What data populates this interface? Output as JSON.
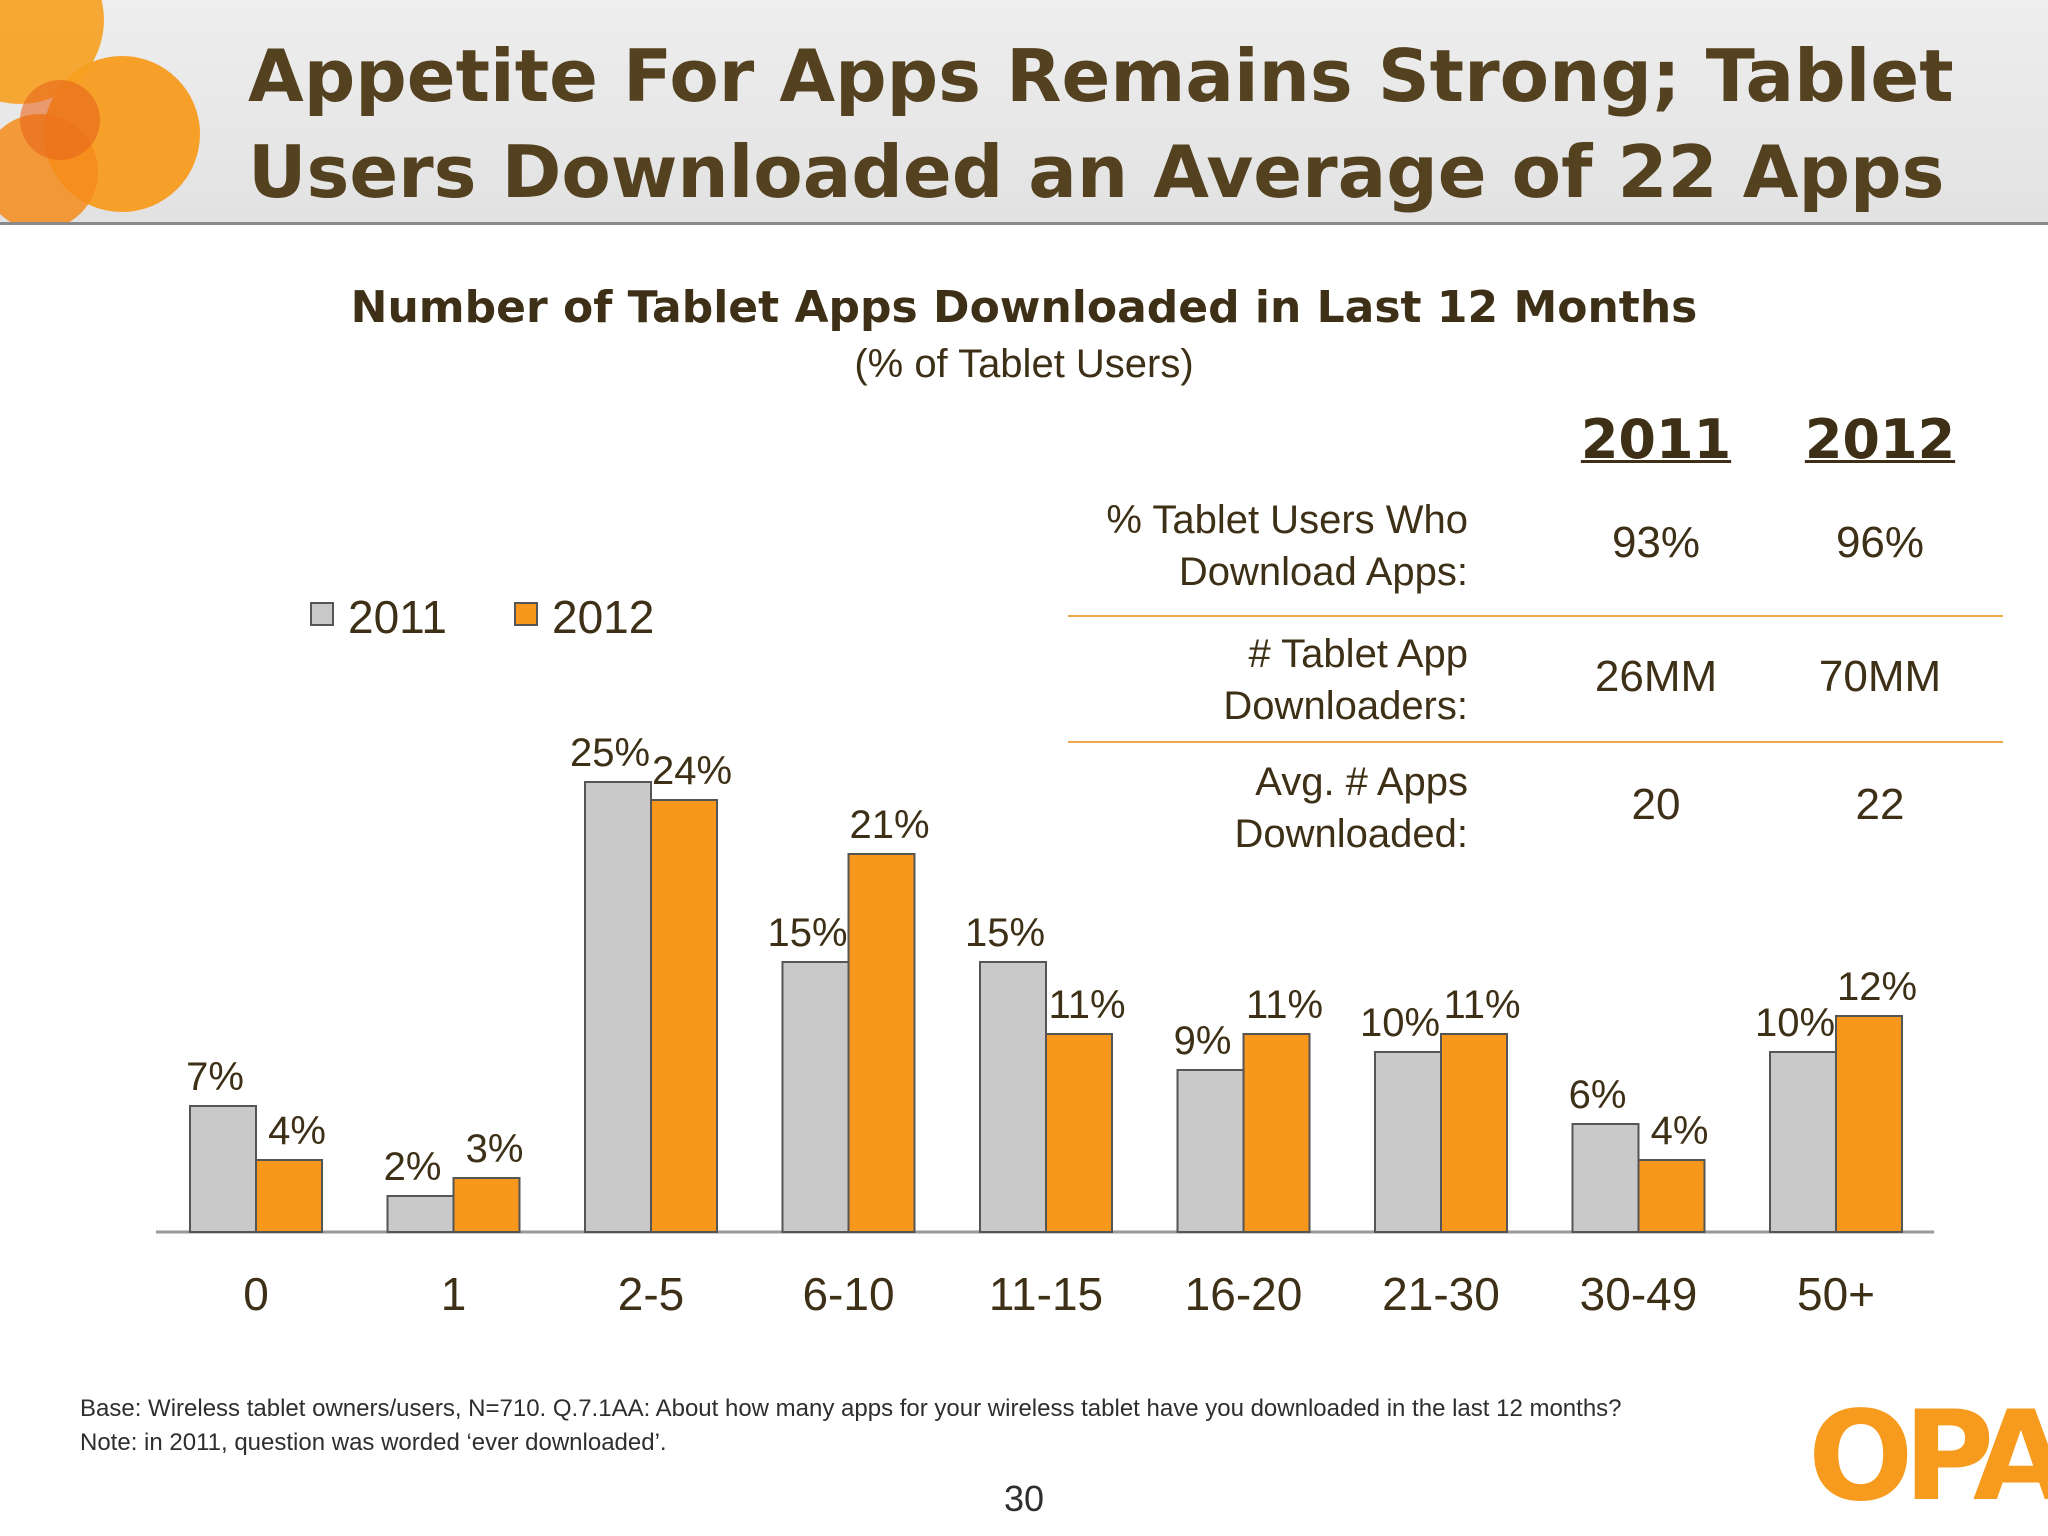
{
  "slide": {
    "title_line1": "Appetite For Apps Remains Strong; Tablet",
    "title_line2": "Users Downloaded an Average of 22 Apps",
    "page_number": "30",
    "logo_text": "OPA"
  },
  "colors": {
    "series_2011": "#c9c9c9",
    "series_2012": "#f7981d",
    "bar_stroke": "#555555",
    "table_rule": "#f0a94a"
  },
  "chart_data": {
    "type": "bar",
    "title": "Number of Tablet Apps Downloaded in Last 12 Months",
    "subtitle": "(% of Tablet Users)",
    "categories": [
      "0",
      "1",
      "2-5",
      "6-10",
      "11-15",
      "16-20",
      "21-30",
      "30-49",
      "50+"
    ],
    "series": [
      {
        "name": "2011",
        "values": [
          7,
          2,
          25,
          15,
          15,
          9,
          10,
          6,
          10
        ],
        "labels": [
          "7%",
          "2%",
          "25%",
          "15%",
          "15%",
          "9%",
          "10%",
          "6%",
          "10%"
        ]
      },
      {
        "name": "2012",
        "values": [
          4,
          3,
          24,
          21,
          11,
          11,
          11,
          4,
          12
        ],
        "labels": [
          "4%",
          "3%",
          "24%",
          "21%",
          "11%",
          "11%",
          "11%",
          "4%",
          "12%"
        ]
      }
    ],
    "xlabel": "",
    "ylabel": "",
    "ylim": [
      0,
      25
    ],
    "grid": false,
    "legend": "top-left"
  },
  "summary_table": {
    "headers": [
      "2011",
      "2012"
    ],
    "rows": [
      {
        "label_line1": "% Tablet Users Who",
        "label_line2": "Download Apps:",
        "v2011": "93%",
        "v2012": "96%"
      },
      {
        "label_line1": "# Tablet App",
        "label_line2": "Downloaders:",
        "v2011": "26MM",
        "v2012": "70MM"
      },
      {
        "label_line1": "Avg.  # Apps",
        "label_line2": "Downloaded:",
        "v2011": "20",
        "v2012": "22"
      }
    ]
  },
  "footnote": {
    "line1": "Base:  Wireless tablet owners/users, N=710. Q.7.1AA:  About how many apps for your wireless tablet have you downloaded in the last 12 months?",
    "line2": "Note: in 2011, question was worded ‘ever downloaded’."
  }
}
